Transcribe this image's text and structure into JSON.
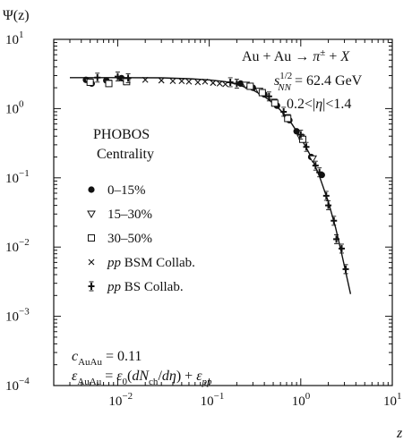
{
  "chart_data": {
    "type": "scatter",
    "title": "",
    "ylabel": "Ψ(z)",
    "xlabel": "z",
    "xscale": "log",
    "yscale": "log",
    "xlim": [
      0.002,
      10
    ],
    "ylim": [
      0.0001,
      10
    ],
    "grid": false,
    "legend_position": "left",
    "x_ticks": [
      {
        "value": 0.01,
        "base": "10",
        "exp": "−2"
      },
      {
        "value": 0.1,
        "base": "10",
        "exp": "−1"
      },
      {
        "value": 1,
        "base": "10",
        "exp": "0"
      },
      {
        "value": 10,
        "base": "10",
        "exp": "1"
      }
    ],
    "y_ticks": [
      {
        "value": 10,
        "base": "10",
        "exp": "1"
      },
      {
        "value": 1,
        "base": "10",
        "exp": "0"
      },
      {
        "value": 0.1,
        "base": "10",
        "exp": "−1"
      },
      {
        "value": 0.01,
        "base": "10",
        "exp": "−2"
      },
      {
        "value": 0.001,
        "base": "10",
        "exp": "−3"
      },
      {
        "value": 0.0001,
        "base": "10",
        "exp": "−4"
      }
    ],
    "annotations": {
      "reaction": "Au + Au → π± + X",
      "energy_label": "s_NN^1/2 = 62.4 GeV",
      "eta_cut": "0.2<|η|<1.4",
      "experiment_line1": "PHOBOS",
      "experiment_line2": "Centrality",
      "c_param": "c_AuAu = 0.11",
      "epsilon_param": "ε_AuAu = ε0(dNch/dη) + εpp"
    },
    "series": [
      {
        "name": "0–15%",
        "marker": "filled-circle",
        "points": [
          [
            0.0045,
            2.6
          ],
          [
            0.0052,
            2.3
          ],
          [
            0.0075,
            2.55
          ],
          [
            0.011,
            2.75
          ],
          [
            0.22,
            2.3
          ],
          [
            0.3,
            2.0
          ],
          [
            0.4,
            1.6
          ],
          [
            0.55,
            1.1
          ],
          [
            0.75,
            0.68
          ],
          [
            0.9,
            0.47
          ],
          [
            1.3,
            0.2
          ],
          [
            1.7,
            0.11
          ]
        ]
      },
      {
        "name": "15–30%",
        "marker": "open-triangle-down",
        "points": [
          [
            0.0048,
            2.45
          ],
          [
            0.0078,
            2.35
          ],
          [
            0.012,
            2.5
          ],
          [
            0.25,
            2.2
          ],
          [
            0.35,
            1.8
          ],
          [
            0.5,
            1.25
          ],
          [
            0.7,
            0.75
          ],
          [
            1.0,
            0.38
          ],
          [
            1.35,
            0.19
          ]
        ]
      },
      {
        "name": "30–50%",
        "marker": "open-square",
        "points": [
          [
            0.005,
            2.4
          ],
          [
            0.008,
            2.3
          ],
          [
            0.0125,
            2.45
          ],
          [
            0.28,
            2.1
          ],
          [
            0.38,
            1.7
          ],
          [
            0.52,
            1.2
          ],
          [
            0.72,
            0.72
          ],
          [
            1.05,
            0.36
          ]
        ]
      },
      {
        "name": "pp BSM Collab.",
        "marker": "cross",
        "points": [
          [
            0.02,
            2.6
          ],
          [
            0.03,
            2.55
          ],
          [
            0.04,
            2.5
          ],
          [
            0.05,
            2.5
          ],
          [
            0.06,
            2.45
          ],
          [
            0.075,
            2.4
          ],
          [
            0.09,
            2.45
          ],
          [
            0.11,
            2.35
          ],
          [
            0.13,
            2.3
          ],
          [
            0.15,
            2.25
          ]
        ]
      },
      {
        "name": "pp BS Collab.",
        "marker": "filled-plus",
        "points": [
          [
            0.006,
            2.8
          ],
          [
            0.01,
            2.9
          ],
          [
            0.013,
            2.75
          ],
          [
            0.17,
            2.4
          ],
          [
            0.2,
            2.3
          ],
          [
            0.45,
            1.5
          ],
          [
            0.65,
            0.9
          ],
          [
            1.0,
            0.42
          ],
          [
            1.15,
            0.28
          ],
          [
            1.45,
            0.15
          ],
          [
            1.6,
            0.12
          ],
          [
            1.9,
            0.055
          ],
          [
            2.0,
            0.04
          ],
          [
            2.3,
            0.024
          ],
          [
            2.45,
            0.013
          ],
          [
            2.8,
            0.0095
          ],
          [
            3.1,
            0.0048
          ]
        ]
      }
    ],
    "fit_curve": {
      "x": [
        0.003,
        0.01,
        0.03,
        0.06,
        0.1,
        0.15,
        0.2,
        0.3,
        0.4,
        0.5,
        0.6,
        0.8,
        1.0,
        1.3,
        1.6,
        2.0,
        2.4,
        2.8,
        3.2,
        3.5
      ],
      "y": [
        2.8,
        2.8,
        2.78,
        2.7,
        2.6,
        2.45,
        2.25,
        1.85,
        1.5,
        1.2,
        0.95,
        0.6,
        0.38,
        0.2,
        0.105,
        0.045,
        0.019,
        0.008,
        0.0036,
        0.0021
      ]
    }
  }
}
